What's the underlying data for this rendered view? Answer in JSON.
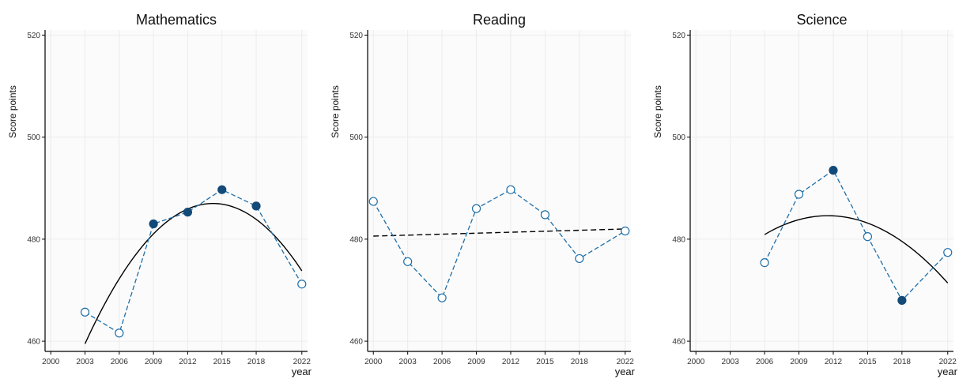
{
  "colors": {
    "series": "#1f6fa8",
    "filled": "#134a78",
    "trend": "#000000",
    "grid": "#ececec",
    "plot_bg": "#fbfbfb"
  },
  "chart_data": [
    {
      "type": "line",
      "title": "Mathematics",
      "xlabel": "year",
      "ylabel": "Score points",
      "xlim": [
        1999.5,
        2022.5
      ],
      "ylim": [
        458,
        521
      ],
      "x_ticks": [
        2000,
        2003,
        2006,
        2009,
        2012,
        2015,
        2018,
        2022
      ],
      "y_ticks": [
        460,
        480,
        500,
        520
      ],
      "grid": true,
      "series": [
        {
          "x": [
            2003,
            2006,
            2009,
            2012,
            2015,
            2018,
            2022
          ],
          "y": [
            465.7,
            461.6,
            483.0,
            485.3,
            489.7,
            486.5,
            471.2
          ],
          "significant": [
            false,
            false,
            true,
            true,
            true,
            true,
            false
          ]
        }
      ],
      "trend": {
        "kind": "quadratic",
        "style": "solid",
        "x": [
          2003,
          2022
        ],
        "points": [
          [
            2003,
            459.5
          ],
          [
            2014.2,
            487.0
          ],
          [
            2022,
            473.8
          ]
        ]
      }
    },
    {
      "type": "line",
      "title": "Reading",
      "xlabel": "year",
      "ylabel": "Score points",
      "xlim": [
        1999.5,
        2022.5
      ],
      "ylim": [
        458,
        521
      ],
      "x_ticks": [
        2000,
        2003,
        2006,
        2009,
        2012,
        2015,
        2018,
        2022
      ],
      "y_ticks": [
        460,
        480,
        500,
        520
      ],
      "grid": true,
      "series": [
        {
          "x": [
            2000,
            2003,
            2006,
            2009,
            2012,
            2015,
            2018,
            2022
          ],
          "y": [
            487.4,
            475.6,
            468.5,
            486.0,
            489.7,
            484.8,
            476.2,
            481.6
          ],
          "significant": [
            false,
            false,
            false,
            false,
            false,
            false,
            false,
            false
          ]
        }
      ],
      "trend": {
        "kind": "linear",
        "style": "dashed",
        "x": [
          2000,
          2022
        ],
        "points": [
          [
            2000,
            480.6
          ],
          [
            2022,
            482.0
          ]
        ]
      }
    },
    {
      "type": "line",
      "title": "Science",
      "xlabel": "year",
      "ylabel": "Score points",
      "xlim": [
        1999.5,
        2022.5
      ],
      "ylim": [
        458,
        521
      ],
      "x_ticks": [
        2000,
        2003,
        2006,
        2009,
        2012,
        2015,
        2018,
        2022
      ],
      "y_ticks": [
        460,
        480,
        500,
        520
      ],
      "grid": true,
      "series": [
        {
          "x": [
            2006,
            2009,
            2012,
            2015,
            2018,
            2022
          ],
          "y": [
            475.4,
            488.8,
            493.5,
            480.5,
            468.0,
            477.4
          ],
          "significant": [
            false,
            false,
            true,
            false,
            true,
            false
          ]
        }
      ],
      "trend": {
        "kind": "quadratic",
        "style": "solid",
        "x": [
          2006,
          2022
        ],
        "points": [
          [
            2006,
            480.9
          ],
          [
            2011.5,
            484.6
          ],
          [
            2022,
            471.4
          ]
        ]
      }
    }
  ]
}
